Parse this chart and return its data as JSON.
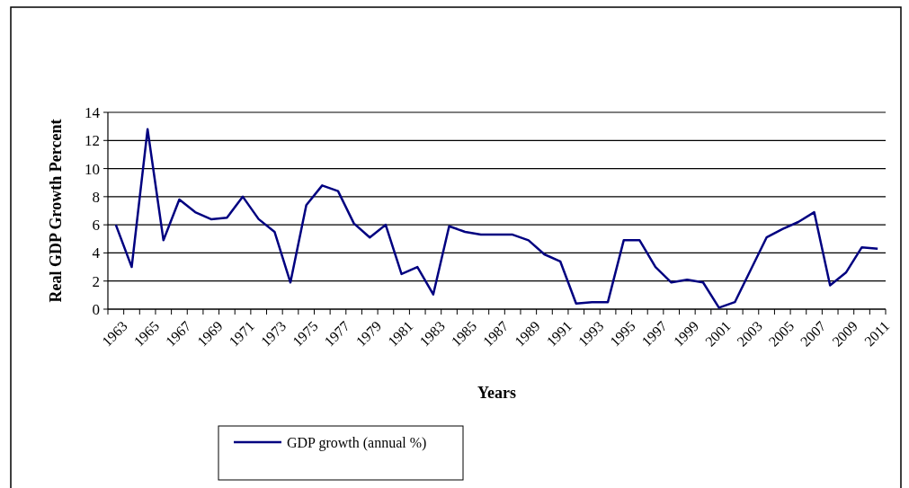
{
  "chart_data": {
    "type": "line",
    "xlabel": "Years",
    "ylabel": "Real GDP Growth Percent",
    "categories": [
      "1963",
      null,
      "1965",
      null,
      "1967",
      null,
      "1969",
      null,
      "1971",
      null,
      "1973",
      null,
      "1975",
      null,
      "1977",
      null,
      "1979",
      null,
      "1981",
      null,
      "1983",
      null,
      "1985",
      null,
      "1987",
      null,
      "1989",
      null,
      "1991",
      null,
      "1993",
      null,
      "1995",
      null,
      "1997",
      null,
      "1999",
      null,
      "2001",
      null,
      "2003",
      null,
      "2005",
      null,
      "2007",
      null,
      "2009",
      null,
      "2011"
    ],
    "series": [
      {
        "name": "GDP growth (annual %)",
        "color": "#000080",
        "values": [
          6.0,
          3.0,
          12.8,
          4.9,
          7.8,
          6.9,
          6.4,
          6.5,
          8.0,
          6.4,
          5.5,
          1.9,
          7.4,
          8.8,
          8.4,
          6.1,
          5.1,
          6.0,
          2.5,
          3.0,
          1.05,
          5.9,
          5.5,
          5.3,
          5.3,
          5.3,
          4.9,
          3.9,
          3.4,
          0.4,
          0.5,
          0.5,
          4.9,
          4.9,
          3.0,
          1.9,
          2.1,
          1.9,
          0.1,
          0.5,
          2.8,
          5.1,
          5.7,
          6.2,
          6.9,
          1.7,
          2.6,
          4.4,
          4.3
        ]
      }
    ],
    "ylim": [
      0,
      14
    ],
    "yticks": [
      0,
      2,
      4,
      6,
      8,
      10,
      12,
      14
    ],
    "grid": "y",
    "legend": "bottom",
    "marker": "none",
    "line_style": "solid"
  }
}
